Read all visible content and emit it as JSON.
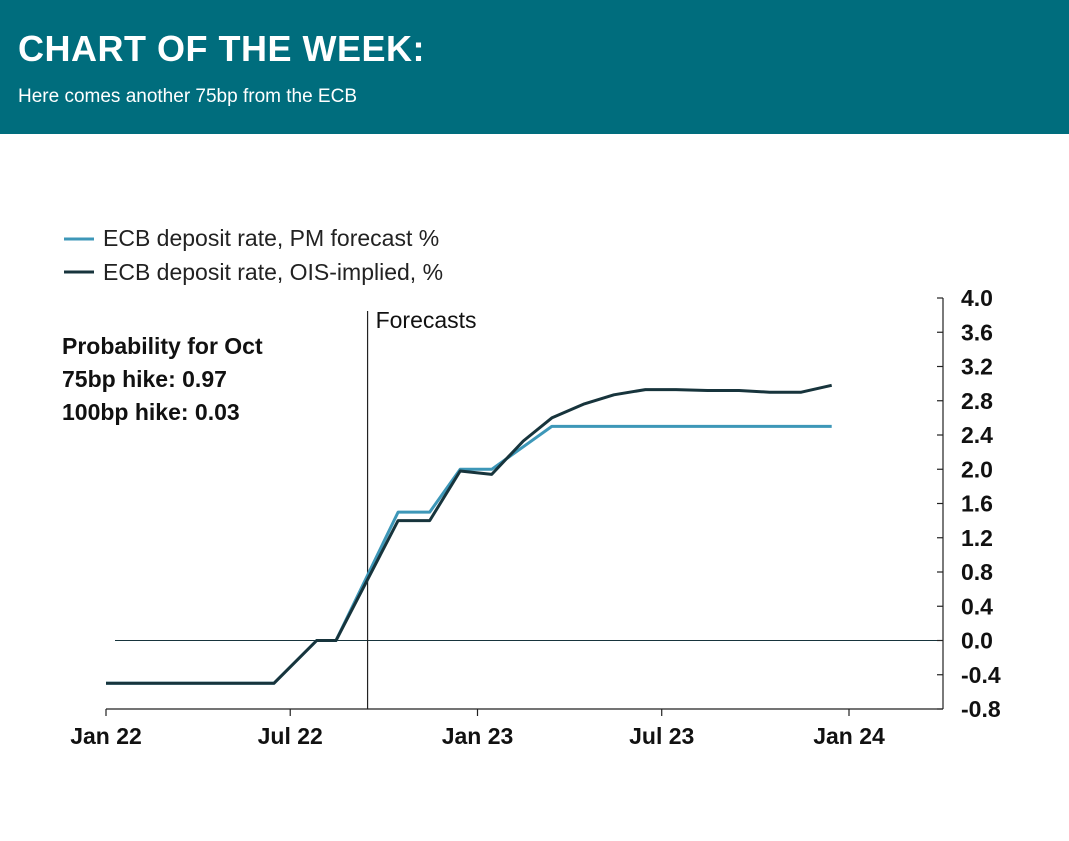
{
  "header": {
    "title": "CHART OF THE WEEK:",
    "subtitle": "Here comes another 75bp from the ECB"
  },
  "annotations": {
    "forecasts_label": "Forecasts",
    "probability_lines": [
      "Probability for Oct",
      "75bp hike: 0.97",
      "100bp hike: 0.03"
    ]
  },
  "colors": {
    "header_bg": "#006d7d",
    "series_pm": "#3d97b8",
    "series_ois": "#17343c",
    "axis": "#222222"
  },
  "chart_data": {
    "type": "line",
    "title": "",
    "xlabel": "",
    "ylabel": "",
    "x_ticks": [
      {
        "label": "Jan 22",
        "date": "2022-01-01"
      },
      {
        "label": "Jul 22",
        "date": "2022-07-01"
      },
      {
        "label": "Jan 23",
        "date": "2023-01-01"
      },
      {
        "label": "Jul 23",
        "date": "2023-07-01"
      },
      {
        "label": "Jan 24",
        "date": "2024-01-01"
      }
    ],
    "xlim": [
      "2022-01-01",
      "2024-04-01"
    ],
    "ylim": [
      -0.8,
      4.0
    ],
    "y_ticks": [
      "4.0",
      "3.6",
      "3.2",
      "2.8",
      "2.4",
      "2.0",
      "1.6",
      "1.2",
      "0.8",
      "0.4",
      "0.0",
      "-0.4",
      "-0.8"
    ],
    "y_axis_position": "right",
    "grid": false,
    "legend_position": "top-left",
    "forecast_start": "2022-09-15",
    "series": [
      {
        "name": "ECB deposit rate, PM forecast %",
        "points": [
          {
            "x": "2022-01-01",
            "y": -0.5
          },
          {
            "x": "2022-06-15",
            "y": -0.5
          },
          {
            "x": "2022-07-27",
            "y": 0.0
          },
          {
            "x": "2022-08-15",
            "y": 0.0
          },
          {
            "x": "2022-10-15",
            "y": 1.5
          },
          {
            "x": "2022-11-15",
            "y": 1.5
          },
          {
            "x": "2022-12-15",
            "y": 2.0
          },
          {
            "x": "2023-01-15",
            "y": 2.0
          },
          {
            "x": "2023-03-15",
            "y": 2.5
          },
          {
            "x": "2023-12-15",
            "y": 2.5
          }
        ]
      },
      {
        "name": "ECB deposit rate, OIS-implied, %",
        "points": [
          {
            "x": "2022-01-01",
            "y": -0.5
          },
          {
            "x": "2022-06-15",
            "y": -0.5
          },
          {
            "x": "2022-07-27",
            "y": 0.0
          },
          {
            "x": "2022-08-15",
            "y": 0.0
          },
          {
            "x": "2022-10-15",
            "y": 1.4
          },
          {
            "x": "2022-11-15",
            "y": 1.4
          },
          {
            "x": "2022-12-15",
            "y": 1.98
          },
          {
            "x": "2023-01-15",
            "y": 1.94
          },
          {
            "x": "2023-02-15",
            "y": 2.33
          },
          {
            "x": "2023-03-15",
            "y": 2.6
          },
          {
            "x": "2023-04-15",
            "y": 2.76
          },
          {
            "x": "2023-05-15",
            "y": 2.87
          },
          {
            "x": "2023-06-15",
            "y": 2.93
          },
          {
            "x": "2023-07-15",
            "y": 2.93
          },
          {
            "x": "2023-08-15",
            "y": 2.92
          },
          {
            "x": "2023-09-15",
            "y": 2.92
          },
          {
            "x": "2023-10-15",
            "y": 2.9
          },
          {
            "x": "2023-11-15",
            "y": 2.9
          },
          {
            "x": "2023-12-15",
            "y": 2.98
          }
        ]
      }
    ]
  }
}
